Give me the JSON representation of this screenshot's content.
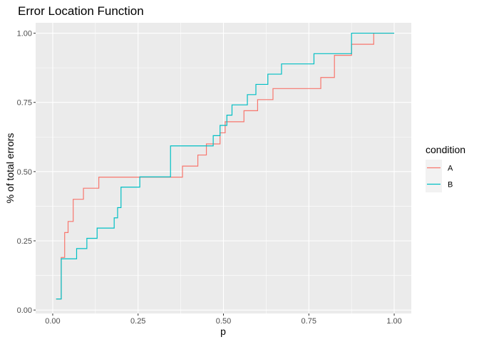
{
  "chart_data": {
    "type": "line",
    "title": "Error Location Function",
    "xlabel": "p",
    "ylabel": "% of total errors",
    "xlim": [
      -0.05,
      1.05
    ],
    "ylim": [
      -0.0125,
      1.0375
    ],
    "x_ticks": [
      "0.00",
      "0.25",
      "0.50",
      "0.75",
      "1.00"
    ],
    "y_ticks": [
      "0.00",
      "0.25",
      "0.50",
      "0.75",
      "1.00"
    ],
    "grid": true,
    "step": true,
    "legend": {
      "title": "condition",
      "position": "right"
    },
    "series": [
      {
        "name": "A",
        "color": "#F8766D",
        "points": [
          [
            0.01,
            0.04
          ],
          [
            0.025,
            0.19
          ],
          [
            0.035,
            0.28
          ],
          [
            0.045,
            0.32
          ],
          [
            0.06,
            0.4
          ],
          [
            0.09,
            0.44
          ],
          [
            0.135,
            0.48
          ],
          [
            0.38,
            0.52
          ],
          [
            0.425,
            0.56
          ],
          [
            0.45,
            0.6
          ],
          [
            0.49,
            0.64
          ],
          [
            0.505,
            0.68
          ],
          [
            0.56,
            0.72
          ],
          [
            0.6,
            0.76
          ],
          [
            0.645,
            0.8
          ],
          [
            0.785,
            0.84
          ],
          [
            0.825,
            0.92
          ],
          [
            0.875,
            0.96
          ],
          [
            0.94,
            1.0
          ],
          [
            1.0,
            1.0
          ]
        ]
      },
      {
        "name": "B",
        "color": "#00BFC4",
        "points": [
          [
            0.01,
            0.04
          ],
          [
            0.025,
            0.185
          ],
          [
            0.07,
            0.222
          ],
          [
            0.1,
            0.259
          ],
          [
            0.13,
            0.296
          ],
          [
            0.18,
            0.333
          ],
          [
            0.19,
            0.37
          ],
          [
            0.2,
            0.444
          ],
          [
            0.255,
            0.481
          ],
          [
            0.345,
            0.593
          ],
          [
            0.47,
            0.63
          ],
          [
            0.49,
            0.667
          ],
          [
            0.51,
            0.704
          ],
          [
            0.525,
            0.741
          ],
          [
            0.57,
            0.778
          ],
          [
            0.595,
            0.815
          ],
          [
            0.63,
            0.852
          ],
          [
            0.67,
            0.889
          ],
          [
            0.765,
            0.926
          ],
          [
            0.875,
            1.0
          ],
          [
            1.0,
            1.0
          ]
        ]
      }
    ]
  }
}
